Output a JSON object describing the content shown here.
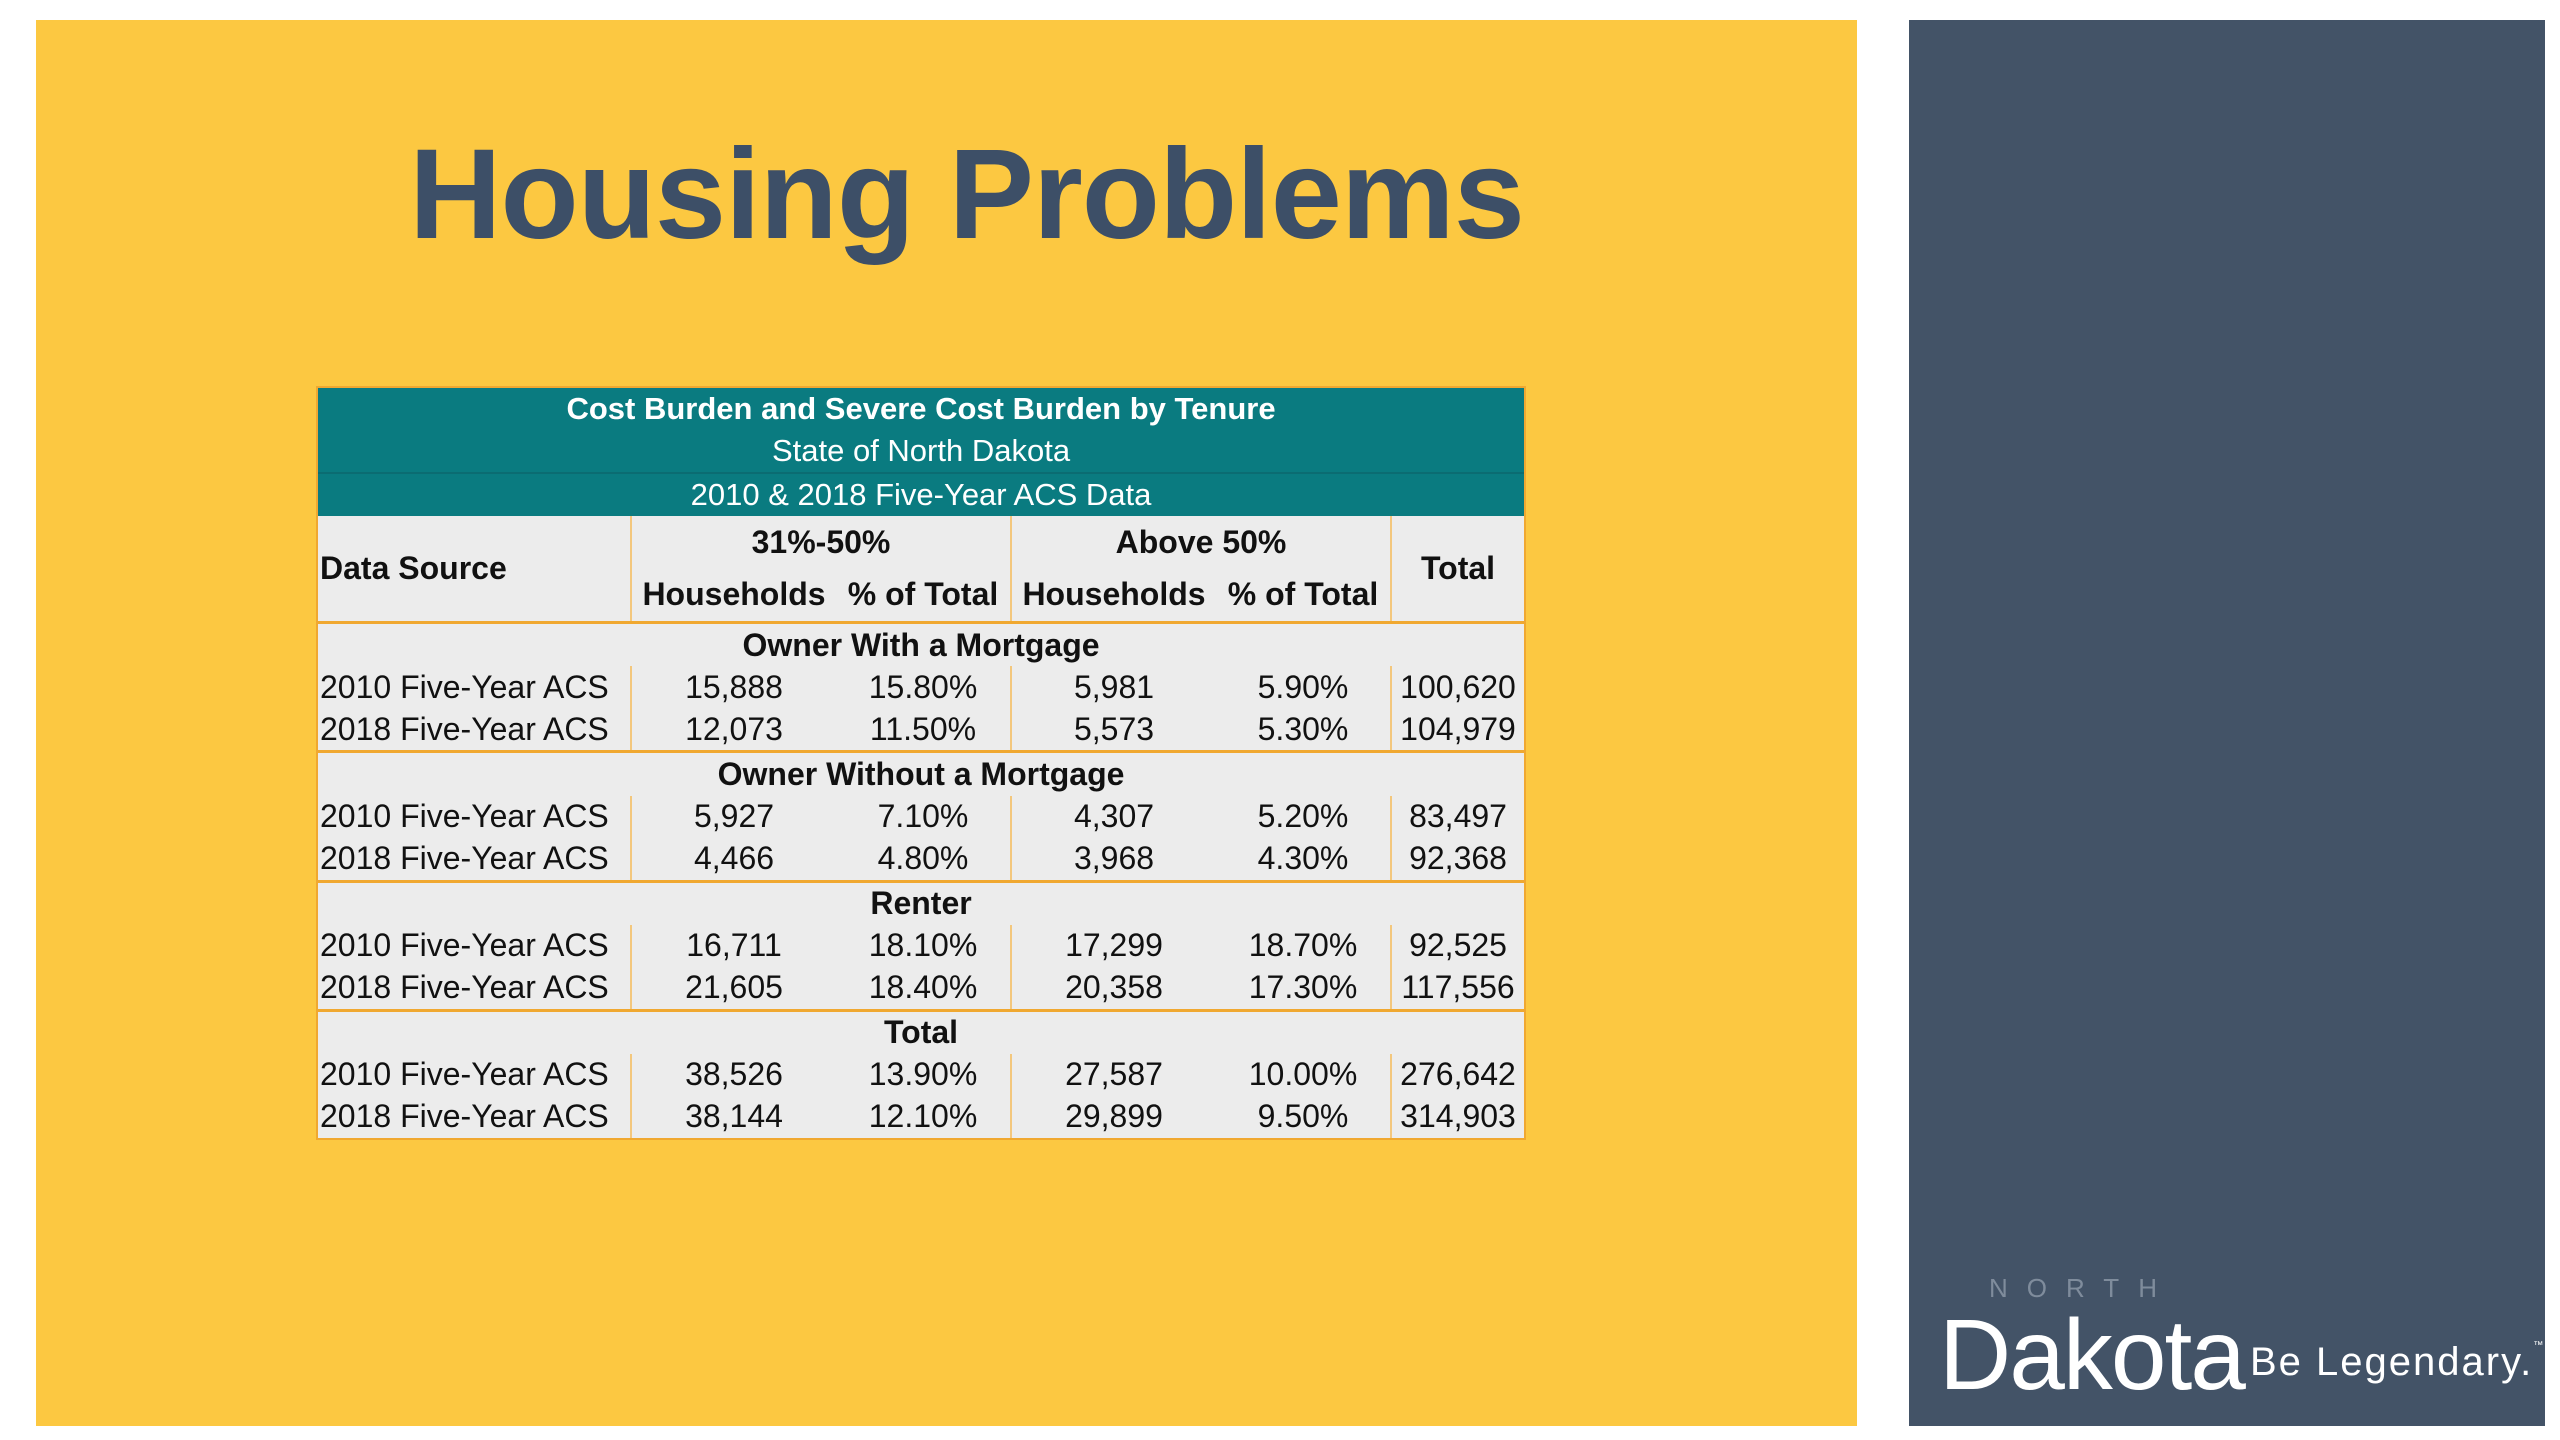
{
  "slide": {
    "title": "Housing Problems",
    "colors": {
      "main_bg": "#fcc841",
      "title_text": "#3d4f67",
      "side_bg": "#435367",
      "table_header_bg": "#0a7b80",
      "table_border": "#f0a830"
    }
  },
  "table": {
    "caption": [
      "Cost Burden and Severe Cost Burden by Tenure",
      "State of North Dakota",
      "2010 & 2018 Five-Year ACS Data"
    ],
    "headers": {
      "data_source": "Data Source",
      "group_1": "31%-50%",
      "group_2": "Above 50%",
      "total": "Total",
      "sub": [
        "Households",
        "% of Total",
        "Households",
        "% of Total"
      ]
    },
    "sections": [
      {
        "name": "Owner With a Mortgage",
        "rows": [
          [
            "2010 Five-Year ACS",
            "15,888",
            "15.80%",
            "5,981",
            "5.90%",
            "100,620"
          ],
          [
            "2018 Five-Year ACS",
            "12,073",
            "11.50%",
            "5,573",
            "5.30%",
            "104,979"
          ]
        ]
      },
      {
        "name": "Owner Without a Mortgage",
        "rows": [
          [
            "2010 Five-Year ACS",
            "5,927",
            "7.10%",
            "4,307",
            "5.20%",
            "83,497"
          ],
          [
            "2018 Five-Year ACS",
            "4,466",
            "4.80%",
            "3,968",
            "4.30%",
            "92,368"
          ]
        ]
      },
      {
        "name": "Renter",
        "rows": [
          [
            "2010 Five-Year ACS",
            "16,711",
            "18.10%",
            "17,299",
            "18.70%",
            "92,525"
          ],
          [
            "2018 Five-Year ACS",
            "21,605",
            "18.40%",
            "20,358",
            "17.30%",
            "117,556"
          ]
        ]
      },
      {
        "name": "Total",
        "rows": [
          [
            "2010 Five-Year ACS",
            "38,526",
            "13.90%",
            "27,587",
            "10.00%",
            "276,642"
          ],
          [
            "2018 Five-Year ACS",
            "38,144",
            "12.10%",
            "29,899",
            "9.50%",
            "314,903"
          ]
        ]
      }
    ]
  },
  "logo": {
    "north": "NORTH",
    "dakota": "Dakota",
    "tagline": "Be Legendary.",
    "tm": "™"
  }
}
